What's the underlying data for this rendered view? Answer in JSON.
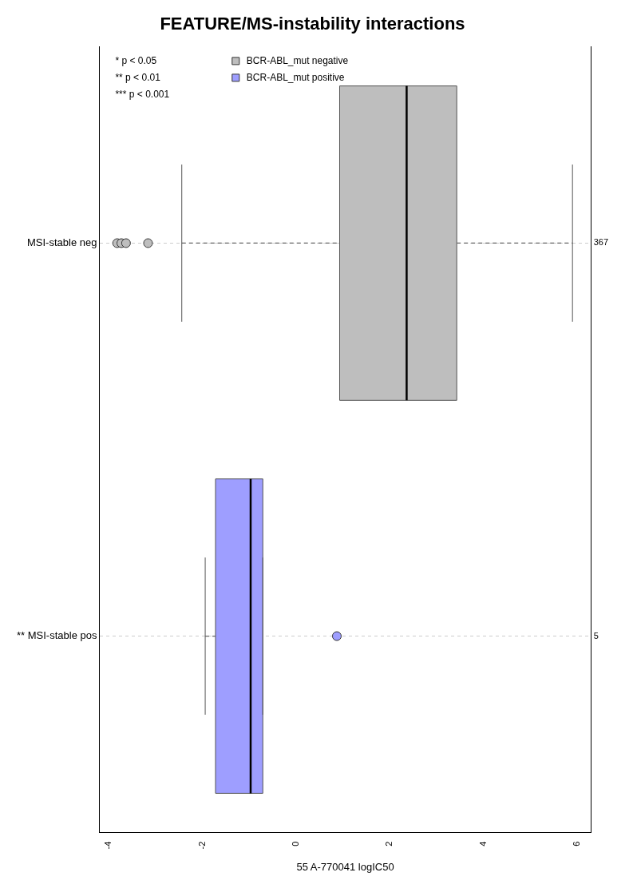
{
  "chart_data": {
    "type": "box",
    "orientation": "horizontal",
    "title": "FEATURE/MS-instability interactions",
    "xlabel": "55 A-770041 logIC50",
    "categories": [
      "MSI-stable neg",
      "** MSI-stable pos"
    ],
    "y2_categories": [
      "367",
      "5"
    ],
    "xlim": [
      -4.2,
      6.3
    ],
    "xticks": [
      -4,
      -2,
      0,
      2,
      4,
      6
    ],
    "grid": "y",
    "legend": "top left",
    "annotations": [
      "* p < 0.05",
      "** p < 0.01",
      "*** p < 0.001"
    ],
    "series": [
      {
        "name": "BCR-ABL_mut negative",
        "color": "#bebebe",
        "boxes": [
          {
            "low": -2.44,
            "q1": 0.93,
            "median": 2.36,
            "q3": 3.43,
            "high": 5.9,
            "outliers": [
              -3.82,
              -3.73,
              -3.63,
              -3.16
            ]
          },
          null
        ]
      },
      {
        "name": "BCR-ABL_mut positive",
        "color": "#9e9eff",
        "boxes": [
          null,
          {
            "low": -1.94,
            "q1": -1.72,
            "median": -0.97,
            "q3": -0.71,
            "high": -0.71,
            "outliers": [
              0.87
            ]
          }
        ]
      }
    ]
  }
}
